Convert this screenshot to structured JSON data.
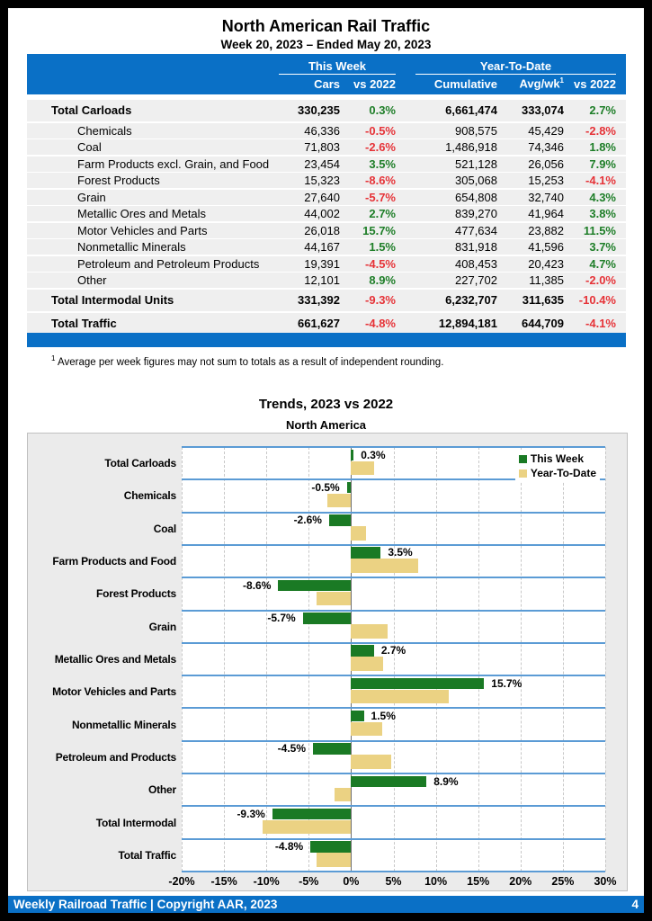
{
  "page": {
    "title": "North American Rail Traffic",
    "subtitle": "Week 20, 2023 – Ended May 20, 2023",
    "footnote_sup": "1",
    "footnote": "Average per week figures may not sum to totals as a result of independent rounding.",
    "footer_left": "Weekly Railroad Traffic | Copyright AAR, 2023",
    "footer_page": "4"
  },
  "colors": {
    "blue": "#0a70c6",
    "row_bg": "#efefef",
    "green_text": "#1e7e28",
    "red_text": "#e63338",
    "bar_green": "#1a7a24",
    "bar_tan": "#ebd283",
    "band_line": "#5b9bd5",
    "grid_line": "#c8c8c8",
    "zero_line": "#6f6f6f",
    "panel_bg": "#ebebeb"
  },
  "table": {
    "group_headers": {
      "this_week": "This Week",
      "ytd": "Year-To-Date"
    },
    "columns": {
      "cars": "Cars",
      "week_vs": "vs 2022",
      "cumulative": "Cumulative",
      "avg_wk": "Avg/wk",
      "avg_wk_sup": "1",
      "ytd_vs": "vs 2022"
    },
    "rows": [
      {
        "label": "Total Carloads",
        "total": true,
        "cars": "330,235",
        "week_vs": "0.3%",
        "cumulative": "6,661,474",
        "avg": "333,074",
        "ytd_vs": "2.7%"
      },
      {
        "label": "Chemicals",
        "cars": "46,336",
        "week_vs": "-0.5%",
        "cumulative": "908,575",
        "avg": "45,429",
        "ytd_vs": "-2.8%"
      },
      {
        "label": "Coal",
        "cars": "71,803",
        "week_vs": "-2.6%",
        "cumulative": "1,486,918",
        "avg": "74,346",
        "ytd_vs": "1.8%"
      },
      {
        "label": "Farm Products excl. Grain, and Food",
        "cars": "23,454",
        "week_vs": "3.5%",
        "cumulative": "521,128",
        "avg": "26,056",
        "ytd_vs": "7.9%"
      },
      {
        "label": "Forest Products",
        "cars": "15,323",
        "week_vs": "-8.6%",
        "cumulative": "305,068",
        "avg": "15,253",
        "ytd_vs": "-4.1%"
      },
      {
        "label": "Grain",
        "cars": "27,640",
        "week_vs": "-5.7%",
        "cumulative": "654,808",
        "avg": "32,740",
        "ytd_vs": "4.3%"
      },
      {
        "label": "Metallic Ores and Metals",
        "cars": "44,002",
        "week_vs": "2.7%",
        "cumulative": "839,270",
        "avg": "41,964",
        "ytd_vs": "3.8%"
      },
      {
        "label": "Motor Vehicles and Parts",
        "cars": "26,018",
        "week_vs": "15.7%",
        "cumulative": "477,634",
        "avg": "23,882",
        "ytd_vs": "11.5%"
      },
      {
        "label": "Nonmetallic Minerals",
        "cars": "44,167",
        "week_vs": "1.5%",
        "cumulative": "831,918",
        "avg": "41,596",
        "ytd_vs": "3.7%"
      },
      {
        "label": "Petroleum and Petroleum Products",
        "cars": "19,391",
        "week_vs": "-4.5%",
        "cumulative": "408,453",
        "avg": "20,423",
        "ytd_vs": "4.7%"
      },
      {
        "label": "Other",
        "cars": "12,101",
        "week_vs": "8.9%",
        "cumulative": "227,702",
        "avg": "11,385",
        "ytd_vs": "-2.0%"
      },
      {
        "label": "Total Intermodal Units",
        "total": true,
        "cars": "331,392",
        "week_vs": "-9.3%",
        "cumulative": "6,232,707",
        "avg": "311,635",
        "ytd_vs": "-10.4%"
      },
      {
        "label": "Total Traffic",
        "total": true,
        "cars": "661,627",
        "week_vs": "-4.8%",
        "cumulative": "12,894,181",
        "avg": "644,709",
        "ytd_vs": "-4.1%"
      }
    ]
  },
  "chart_data": {
    "type": "bar",
    "orientation": "horizontal",
    "title": "Trends, 2023 vs 2022",
    "subtitle": "North America",
    "categories": [
      "Total Carloads",
      "Chemicals",
      "Coal",
      "Farm Products and Food",
      "Forest Products",
      "Grain",
      "Metallic Ores and Metals",
      "Motor Vehicles and Parts",
      "Nonmetallic Minerals",
      "Petroleum and Products",
      "Other",
      "Total Intermodal",
      "Total Traffic"
    ],
    "series": [
      {
        "name": "This Week",
        "color": "#1a7a24",
        "values": [
          0.3,
          -0.5,
          -2.6,
          3.5,
          -8.6,
          -5.7,
          2.7,
          15.7,
          1.5,
          -4.5,
          8.9,
          -9.3,
          -4.8
        ]
      },
      {
        "name": "Year-To-Date",
        "color": "#ebd283",
        "values": [
          2.7,
          -2.8,
          1.8,
          7.9,
          -4.1,
          4.3,
          3.8,
          11.5,
          3.7,
          4.7,
          -2.0,
          -10.4,
          -4.1
        ]
      }
    ],
    "data_labels": [
      "0.3%",
      "-0.5%",
      "-2.6%",
      "3.5%",
      "-8.6%",
      "-5.7%",
      "2.7%",
      "15.7%",
      "1.5%",
      "-4.5%",
      "8.9%",
      "-9.3%",
      "-4.8%"
    ],
    "xlim": [
      -20,
      30
    ],
    "x_ticks": [
      "-20%",
      "-15%",
      "-10%",
      "-5%",
      "0%",
      "5%",
      "10%",
      "15%",
      "20%",
      "25%",
      "30%"
    ],
    "grid": "vertical-dashed-every-5pct",
    "legend_position": "top-right"
  }
}
